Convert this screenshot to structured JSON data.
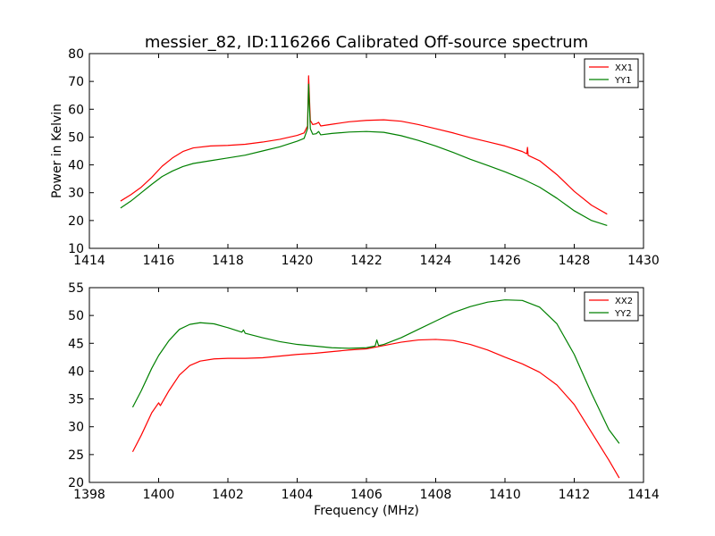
{
  "chart_data": [
    {
      "type": "line",
      "title": "messier_82, ID:116266 Calibrated Off-source spectrum",
      "xlabel": "",
      "ylabel": "Power in Kelvin",
      "xlim": [
        1414,
        1430
      ],
      "ylim": [
        10,
        80
      ],
      "xticks": [
        "1414",
        "1416",
        "1418",
        "1420",
        "1422",
        "1424",
        "1426",
        "1428",
        "1430"
      ],
      "yticks": [
        "10",
        "20",
        "30",
        "40",
        "50",
        "60",
        "70",
        "80"
      ],
      "legend_position": "top-right",
      "grid": false,
      "series": [
        {
          "name": "XX1",
          "color": "#ff0000",
          "points": [
            [
              1414.9,
              27
            ],
            [
              1415.2,
              29.3
            ],
            [
              1415.5,
              32
            ],
            [
              1415.8,
              35.5
            ],
            [
              1416.1,
              39.5
            ],
            [
              1416.4,
              42.5
            ],
            [
              1416.7,
              44.8
            ],
            [
              1417.0,
              46.1
            ],
            [
              1417.5,
              46.8
            ],
            [
              1418.0,
              47
            ],
            [
              1418.5,
              47.4
            ],
            [
              1419.0,
              48.2
            ],
            [
              1419.5,
              49.2
            ],
            [
              1420.0,
              50.6
            ],
            [
              1420.2,
              51.5
            ],
            [
              1420.3,
              54
            ],
            [
              1420.33,
              72
            ],
            [
              1420.38,
              56
            ],
            [
              1420.45,
              54.5
            ],
            [
              1420.55,
              54.8
            ],
            [
              1420.62,
              55.3
            ],
            [
              1420.68,
              54
            ],
            [
              1421.0,
              54.6
            ],
            [
              1421.5,
              55.5
            ],
            [
              1422.0,
              56
            ],
            [
              1422.5,
              56.2
            ],
            [
              1423.0,
              55.7
            ],
            [
              1423.5,
              54.5
            ],
            [
              1424.0,
              53
            ],
            [
              1424.5,
              51.5
            ],
            [
              1425.0,
              49.8
            ],
            [
              1425.5,
              48.3
            ],
            [
              1426.0,
              46.8
            ],
            [
              1426.5,
              44.8
            ],
            [
              1426.63,
              44
            ],
            [
              1426.65,
              46.3
            ],
            [
              1426.67,
              43.4
            ],
            [
              1427.0,
              41.5
            ],
            [
              1427.5,
              36.5
            ],
            [
              1428.0,
              30.5
            ],
            [
              1428.5,
              25.5
            ],
            [
              1428.95,
              22.3
            ]
          ]
        },
        {
          "name": "YY1",
          "color": "#008000",
          "points": [
            [
              1414.9,
              24.5
            ],
            [
              1415.2,
              27
            ],
            [
              1415.5,
              30
            ],
            [
              1415.8,
              33
            ],
            [
              1416.1,
              35.8
            ],
            [
              1416.4,
              37.8
            ],
            [
              1416.7,
              39.4
            ],
            [
              1417.0,
              40.5
            ],
            [
              1417.5,
              41.5
            ],
            [
              1418.0,
              42.5
            ],
            [
              1418.5,
              43.5
            ],
            [
              1419.0,
              45
            ],
            [
              1419.5,
              46.5
            ],
            [
              1420.0,
              48.5
            ],
            [
              1420.2,
              49.5
            ],
            [
              1420.3,
              53
            ],
            [
              1420.33,
              69
            ],
            [
              1420.38,
              53
            ],
            [
              1420.45,
              51
            ],
            [
              1420.55,
              51.2
            ],
            [
              1420.62,
              52
            ],
            [
              1420.68,
              50.8
            ],
            [
              1421.0,
              51.3
            ],
            [
              1421.5,
              51.8
            ],
            [
              1422.0,
              52
            ],
            [
              1422.5,
              51.7
            ],
            [
              1423.0,
              50.5
            ],
            [
              1423.5,
              48.8
            ],
            [
              1424.0,
              46.8
            ],
            [
              1424.5,
              44.5
            ],
            [
              1425.0,
              42
            ],
            [
              1425.5,
              39.8
            ],
            [
              1426.0,
              37.5
            ],
            [
              1426.5,
              35
            ],
            [
              1427.0,
              32
            ],
            [
              1427.5,
              28
            ],
            [
              1428.0,
              23.5
            ],
            [
              1428.5,
              20
            ],
            [
              1428.95,
              18.2
            ]
          ]
        }
      ]
    },
    {
      "type": "line",
      "title": "",
      "xlabel": "Frequency (MHz)",
      "ylabel": "",
      "xlim": [
        1398,
        1414
      ],
      "ylim": [
        20,
        55
      ],
      "xticks": [
        "1398",
        "1400",
        "1402",
        "1404",
        "1406",
        "1408",
        "1410",
        "1412",
        "1414"
      ],
      "yticks": [
        "20",
        "25",
        "30",
        "35",
        "40",
        "45",
        "50",
        "55"
      ],
      "legend_position": "top-right",
      "grid": false,
      "series": [
        {
          "name": "XX2",
          "color": "#ff0000",
          "points": [
            [
              1399.25,
              25.5
            ],
            [
              1399.5,
              28.5
            ],
            [
              1399.8,
              32.5
            ],
            [
              1400.0,
              34.3
            ],
            [
              1400.05,
              33.8
            ],
            [
              1400.3,
              36.5
            ],
            [
              1400.6,
              39.3
            ],
            [
              1400.9,
              41
            ],
            [
              1401.2,
              41.8
            ],
            [
              1401.6,
              42.2
            ],
            [
              1402.0,
              42.3
            ],
            [
              1402.5,
              42.3
            ],
            [
              1403.0,
              42.4
            ],
            [
              1403.5,
              42.7
            ],
            [
              1404.0,
              43
            ],
            [
              1404.5,
              43.2
            ],
            [
              1405.0,
              43.5
            ],
            [
              1405.5,
              43.8
            ],
            [
              1406.0,
              44
            ],
            [
              1406.5,
              44.6
            ],
            [
              1407.0,
              45.2
            ],
            [
              1407.5,
              45.6
            ],
            [
              1408.0,
              45.7
            ],
            [
              1408.5,
              45.5
            ],
            [
              1409.0,
              44.8
            ],
            [
              1409.5,
              43.8
            ],
            [
              1410.0,
              42.5
            ],
            [
              1410.5,
              41.3
            ],
            [
              1411.0,
              39.8
            ],
            [
              1411.5,
              37.5
            ],
            [
              1412.0,
              34
            ],
            [
              1412.5,
              29
            ],
            [
              1413.0,
              24
            ],
            [
              1413.3,
              20.8
            ]
          ]
        },
        {
          "name": "YY2",
          "color": "#008000",
          "points": [
            [
              1399.25,
              33.5
            ],
            [
              1399.5,
              36.5
            ],
            [
              1399.8,
              40.5
            ],
            [
              1400.0,
              42.8
            ],
            [
              1400.3,
              45.5
            ],
            [
              1400.6,
              47.5
            ],
            [
              1400.9,
              48.4
            ],
            [
              1401.2,
              48.7
            ],
            [
              1401.6,
              48.5
            ],
            [
              1402.0,
              47.8
            ],
            [
              1402.4,
              47
            ],
            [
              1402.45,
              47.4
            ],
            [
              1402.5,
              46.8
            ],
            [
              1403.0,
              46
            ],
            [
              1403.5,
              45.3
            ],
            [
              1404.0,
              44.8
            ],
            [
              1404.5,
              44.5
            ],
            [
              1405.0,
              44.2
            ],
            [
              1405.5,
              44.1
            ],
            [
              1406.0,
              44.2
            ],
            [
              1406.25,
              44.5
            ],
            [
              1406.3,
              45.6
            ],
            [
              1406.35,
              44.6
            ],
            [
              1406.5,
              44.8
            ],
            [
              1407.0,
              46
            ],
            [
              1407.5,
              47.5
            ],
            [
              1408.0,
              49
            ],
            [
              1408.5,
              50.5
            ],
            [
              1409.0,
              51.6
            ],
            [
              1409.5,
              52.4
            ],
            [
              1410.0,
              52.8
            ],
            [
              1410.5,
              52.7
            ],
            [
              1411.0,
              51.5
            ],
            [
              1411.5,
              48.5
            ],
            [
              1412.0,
              43
            ],
            [
              1412.5,
              36
            ],
            [
              1413.0,
              29.5
            ],
            [
              1413.3,
              27
            ]
          ]
        }
      ]
    }
  ]
}
